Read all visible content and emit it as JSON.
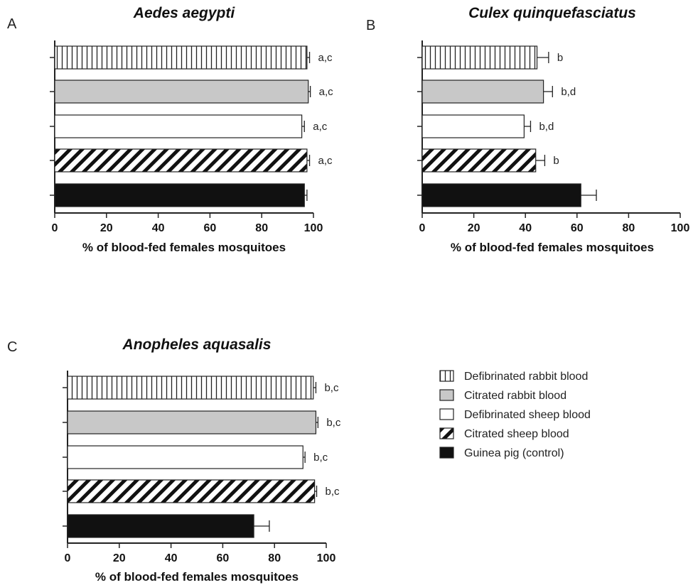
{
  "legend": [
    {
      "key": "defib_rabbit",
      "label": "Defibrinated rabbit blood",
      "pattern": "vlines"
    },
    {
      "key": "citr_rabbit",
      "label": "Citrated rabbit blood",
      "pattern": "gray"
    },
    {
      "key": "defib_sheep",
      "label": "Defibrinated sheep blood",
      "pattern": "white"
    },
    {
      "key": "citr_sheep",
      "label": "Citrated sheep blood",
      "pattern": "diag"
    },
    {
      "key": "guinea_pig",
      "label": "Guinea pig (control)",
      "pattern": "black"
    }
  ],
  "colors": {
    "gray_fill": "#c8c8c8",
    "black_fill": "#111111",
    "stroke": "#222222"
  },
  "chart_data": [
    {
      "panel": "A",
      "type": "bar",
      "orientation": "horizontal",
      "title": "Aedes aegypti",
      "xlabel": "% of blood-fed females mosquitoes",
      "xlim": [
        0,
        100
      ],
      "xticks": [
        0,
        20,
        40,
        60,
        80,
        100
      ],
      "categories": [
        "Defibrinated rabbit blood",
        "Citrated rabbit blood",
        "Defibrinated sheep blood",
        "Citrated sheep blood",
        "Guinea pig (control)"
      ],
      "values": [
        97.5,
        98,
        95.5,
        97.5,
        96.5
      ],
      "errors": [
        1,
        0.8,
        1,
        1,
        1
      ],
      "sig_labels": [
        "a,c",
        "a,c",
        "a,c",
        "a,c",
        ""
      ]
    },
    {
      "panel": "B",
      "type": "bar",
      "orientation": "horizontal",
      "title": "Culex quinquefasciatus",
      "xlabel": "% of blood-fed females mosquitoes",
      "xlim": [
        0,
        100
      ],
      "xticks": [
        0,
        20,
        40,
        60,
        80,
        100
      ],
      "categories": [
        "Defibrinated rabbit blood",
        "Citrated rabbit blood",
        "Defibrinated sheep blood",
        "Citrated sheep blood",
        "Guinea pig (control)"
      ],
      "values": [
        44.5,
        47,
        39.5,
        44,
        61.5
      ],
      "errors": [
        4.5,
        3.5,
        2.5,
        3.5,
        6
      ],
      "sig_labels": [
        "b",
        "b,d",
        "b,d",
        "b",
        ""
      ]
    },
    {
      "panel": "C",
      "type": "bar",
      "orientation": "horizontal",
      "title": "Anopheles aquasalis",
      "xlabel": "% of blood-fed females mosquitoes",
      "xlim": [
        0,
        100
      ],
      "xticks": [
        0,
        20,
        40,
        60,
        80,
        100
      ],
      "categories": [
        "Defibrinated rabbit blood",
        "Citrated rabbit blood",
        "Defibrinated sheep blood",
        "Citrated sheep blood",
        "Guinea pig (control)"
      ],
      "values": [
        95,
        96,
        91,
        95.5,
        72
      ],
      "errors": [
        1,
        0.8,
        0.8,
        0.8,
        6
      ],
      "sig_labels": [
        "b,c",
        "b,c",
        "b,c",
        "b,c",
        ""
      ]
    }
  ]
}
